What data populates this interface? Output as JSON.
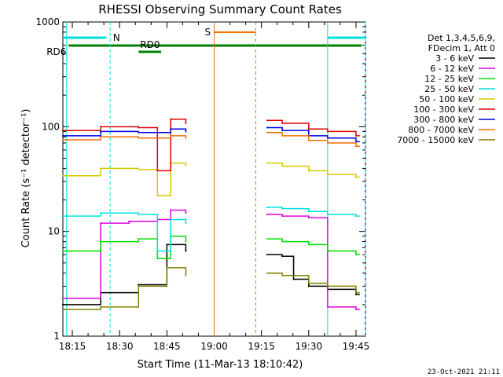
{
  "chart_data": {
    "type": "line",
    "title": "RHESSI Observing Summary Count Rates",
    "xlabel": "Start Time (11-Mar-13 18:10:42)",
    "ylabel": "Count Rate (s⁻¹ detector⁻¹)",
    "yscale": "log",
    "ylim": [
      1,
      1000
    ],
    "xlim_minutes": [
      18.2,
      19.8
    ],
    "x_ticks": [
      "18:15",
      "18:30",
      "18:45",
      "19:00",
      "19:15",
      "19:30",
      "19:45"
    ],
    "y_ticks": [
      "1",
      "10",
      "100",
      "1000"
    ],
    "legend_header": [
      "Det 1,3,4,5,6,9,",
      "FDecim 1, Att 0"
    ],
    "legend_placement": "top-right",
    "series": [
      {
        "name": "3 - 6 keV",
        "color": "#000000",
        "values": [
          [
            18.2,
            2.0
          ],
          [
            18.4,
            2.6
          ],
          [
            18.6,
            3.1
          ],
          [
            18.75,
            7.5
          ],
          [
            18.85,
            6.5
          ],
          [
            19.28,
            6.0
          ],
          [
            19.36,
            5.8
          ],
          [
            19.42,
            3.5
          ],
          [
            19.5,
            3.0
          ],
          [
            19.6,
            2.8
          ],
          [
            19.75,
            2.5
          ]
        ]
      },
      {
        "name": "6 - 12 keV",
        "color": "#e000e0",
        "values": [
          [
            18.2,
            2.3
          ],
          [
            18.4,
            12.0
          ],
          [
            18.55,
            12.5
          ],
          [
            18.7,
            13.0
          ],
          [
            18.77,
            16.0
          ],
          [
            18.85,
            15.0
          ],
          [
            19.28,
            14.5
          ],
          [
            19.36,
            14.0
          ],
          [
            19.5,
            13.5
          ],
          [
            19.6,
            1.9
          ],
          [
            19.75,
            1.8
          ]
        ]
      },
      {
        "name": "12 - 25 keV",
        "color": "#00e000",
        "values": [
          [
            18.2,
            6.5
          ],
          [
            18.4,
            8.0
          ],
          [
            18.6,
            8.5
          ],
          [
            18.7,
            5.5
          ],
          [
            18.77,
            9.0
          ],
          [
            18.85,
            8.0
          ],
          [
            19.28,
            8.5
          ],
          [
            19.36,
            8.0
          ],
          [
            19.5,
            7.5
          ],
          [
            19.6,
            6.5
          ],
          [
            19.75,
            6.0
          ]
        ]
      },
      {
        "name": "25 - 50 keV",
        "color": "#00e0e0",
        "values": [
          [
            18.2,
            14.0
          ],
          [
            18.4,
            15.0
          ],
          [
            18.6,
            14.5
          ],
          [
            18.7,
            6.5
          ],
          [
            18.77,
            13.0
          ],
          [
            18.85,
            12.0
          ],
          [
            19.28,
            17.0
          ],
          [
            19.36,
            16.5
          ],
          [
            19.5,
            15.5
          ],
          [
            19.6,
            14.5
          ],
          [
            19.75,
            14.0
          ]
        ]
      },
      {
        "name": "50 - 100 keV",
        "color": "#d8c800",
        "values": [
          [
            18.2,
            34.0
          ],
          [
            18.4,
            40.0
          ],
          [
            18.6,
            39.0
          ],
          [
            18.7,
            22.0
          ],
          [
            18.77,
            45.0
          ],
          [
            18.85,
            43.0
          ],
          [
            19.28,
            45.0
          ],
          [
            19.36,
            42.0
          ],
          [
            19.5,
            38.0
          ],
          [
            19.6,
            35.0
          ],
          [
            19.75,
            33.0
          ]
        ]
      },
      {
        "name": "100 - 300 keV",
        "color": "#e00000",
        "values": [
          [
            18.2,
            92.0
          ],
          [
            18.4,
            100.0
          ],
          [
            18.6,
            98.0
          ],
          [
            18.7,
            38.0
          ],
          [
            18.77,
            118.0
          ],
          [
            18.85,
            108.0
          ],
          [
            19.28,
            115.0
          ],
          [
            19.36,
            108.0
          ],
          [
            19.5,
            95.0
          ],
          [
            19.6,
            90.0
          ],
          [
            19.75,
            82.0
          ]
        ]
      },
      {
        "name": "300 - 800 keV",
        "color": "#0000e0",
        "values": [
          [
            18.2,
            82.0
          ],
          [
            18.4,
            90.0
          ],
          [
            18.6,
            88.0
          ],
          [
            18.77,
            95.0
          ],
          [
            18.85,
            90.0
          ],
          [
            19.28,
            98.0
          ],
          [
            19.36,
            92.0
          ],
          [
            19.5,
            82.0
          ],
          [
            19.6,
            78.0
          ],
          [
            19.75,
            72.0
          ]
        ]
      },
      {
        "name": "800 - 7000 keV",
        "color": "#f07000",
        "values": [
          [
            18.2,
            75.0
          ],
          [
            18.4,
            80.0
          ],
          [
            18.6,
            78.0
          ],
          [
            18.77,
            82.0
          ],
          [
            18.85,
            78.0
          ],
          [
            19.28,
            88.0
          ],
          [
            19.36,
            82.0
          ],
          [
            19.5,
            74.0
          ],
          [
            19.6,
            70.0
          ],
          [
            19.75,
            65.0
          ]
        ]
      },
      {
        "name": "7000 - 15000 keV",
        "color": "#808000",
        "values": [
          [
            18.2,
            1.8
          ],
          [
            18.4,
            1.9
          ],
          [
            18.6,
            3.0
          ],
          [
            18.75,
            4.5
          ],
          [
            18.85,
            3.8
          ],
          [
            19.28,
            4.0
          ],
          [
            19.36,
            3.8
          ],
          [
            19.5,
            3.2
          ],
          [
            19.6,
            3.0
          ],
          [
            19.75,
            2.6
          ]
        ]
      }
    ],
    "flag_bars": [
      {
        "label": "N",
        "color": "#00e0e0"
      },
      {
        "label": "RD6",
        "color": "#008000"
      },
      {
        "label": "RD0",
        "color": "#008000"
      },
      {
        "label": "S",
        "color": "#f07000"
      }
    ]
  },
  "timestamp": "23-Oct-2021 21:11"
}
